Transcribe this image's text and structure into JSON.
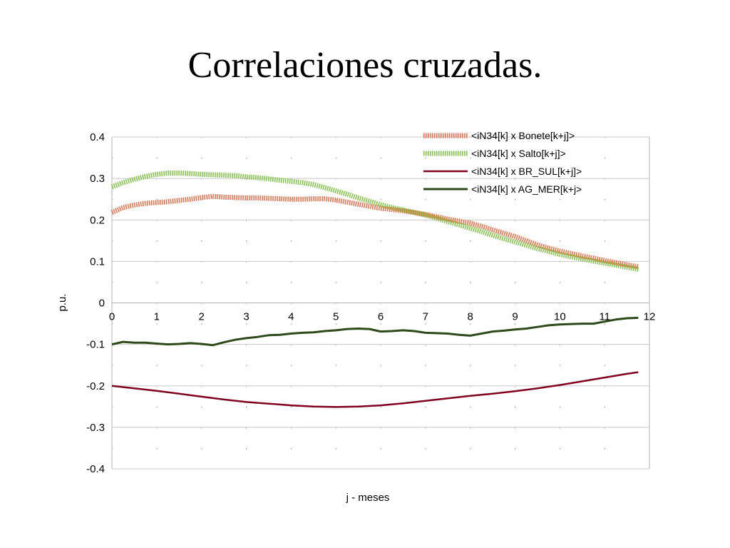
{
  "slide": {
    "title": "Correlaciones cruzadas."
  },
  "colors": {
    "bonete": "#f06a45",
    "salto": "#7dc242",
    "br_sul": "#800020",
    "ag_mer": "#2f4a1a",
    "grid_major": "#c8c8c8",
    "grid_minor": "#b4b4b4"
  },
  "chart_data": {
    "type": "line",
    "title": "",
    "xlabel": "j - meses",
    "ylabel": "p.u.",
    "xlim": [
      0,
      12
    ],
    "ylim": [
      -0.4,
      0.4
    ],
    "x_ticks": [
      "0",
      "1",
      "2",
      "3",
      "4",
      "5",
      "6",
      "7",
      "8",
      "9",
      "10",
      "11",
      "12"
    ],
    "y_ticks": [
      "0.4",
      "0.3",
      "0.2",
      "0.1",
      "0",
      "-0.1",
      "-0.2",
      "-0.3",
      "-0.4"
    ],
    "grid": true,
    "legend": "top-right",
    "series": [
      {
        "name": "<iN34[k] x Bonete[k+j]>",
        "style": "dotted",
        "x": [
          0,
          0.25,
          0.5,
          0.75,
          1,
          1.25,
          1.5,
          1.75,
          2,
          2.25,
          2.5,
          2.75,
          3,
          3.25,
          3.5,
          3.75,
          4,
          4.25,
          4.5,
          4.75,
          5,
          5.25,
          5.5,
          5.75,
          6,
          6.25,
          6.5,
          6.75,
          7,
          7.25,
          7.5,
          7.75,
          8,
          8.25,
          8.5,
          8.75,
          9,
          9.25,
          9.5,
          9.75,
          10,
          10.25,
          10.5,
          10.75,
          11,
          11.25,
          11.5,
          11.75
        ],
        "y": [
          0.218,
          0.23,
          0.236,
          0.24,
          0.242,
          0.244,
          0.247,
          0.25,
          0.254,
          0.257,
          0.255,
          0.254,
          0.253,
          0.253,
          0.252,
          0.251,
          0.25,
          0.25,
          0.251,
          0.251,
          0.248,
          0.243,
          0.238,
          0.233,
          0.228,
          0.225,
          0.222,
          0.218,
          0.213,
          0.208,
          0.202,
          0.197,
          0.192,
          0.185,
          0.176,
          0.168,
          0.16,
          0.15,
          0.14,
          0.132,
          0.125,
          0.119,
          0.113,
          0.108,
          0.102,
          0.097,
          0.092,
          0.087
        ]
      },
      {
        "name": "<iN34[k] x Salto[k+j]>",
        "style": "dotted",
        "x": [
          0,
          0.25,
          0.5,
          0.75,
          1,
          1.25,
          1.5,
          1.75,
          2,
          2.25,
          2.5,
          2.75,
          3,
          3.25,
          3.5,
          3.75,
          4,
          4.25,
          4.5,
          4.75,
          5,
          5.25,
          5.5,
          5.75,
          6,
          6.25,
          6.5,
          6.75,
          7,
          7.25,
          7.5,
          7.75,
          8,
          8.25,
          8.5,
          8.75,
          9,
          9.25,
          9.5,
          9.75,
          10,
          10.25,
          10.5,
          10.75,
          11,
          11.25,
          11.5,
          11.75
        ],
        "y": [
          0.28,
          0.29,
          0.298,
          0.305,
          0.31,
          0.313,
          0.313,
          0.312,
          0.31,
          0.309,
          0.308,
          0.307,
          0.304,
          0.302,
          0.299,
          0.296,
          0.293,
          0.29,
          0.285,
          0.278,
          0.27,
          0.262,
          0.253,
          0.245,
          0.237,
          0.23,
          0.224,
          0.218,
          0.212,
          0.204,
          0.196,
          0.188,
          0.18,
          0.172,
          0.163,
          0.155,
          0.147,
          0.139,
          0.131,
          0.124,
          0.117,
          0.111,
          0.106,
          0.101,
          0.096,
          0.091,
          0.086,
          0.081
        ]
      },
      {
        "name": "<iN34[k] x BR_SUL[k+j]>",
        "style": "solid",
        "x": [
          0,
          0.5,
          1,
          1.5,
          2,
          2.5,
          3,
          3.5,
          4,
          4.5,
          5,
          5.5,
          6,
          6.5,
          7,
          7.5,
          8,
          8.5,
          9,
          9.5,
          10,
          10.5,
          11,
          11.5,
          11.75
        ],
        "y": [
          -0.2,
          -0.206,
          -0.212,
          -0.219,
          -0.226,
          -0.233,
          -0.239,
          -0.243,
          -0.247,
          -0.25,
          -0.251,
          -0.25,
          -0.247,
          -0.242,
          -0.236,
          -0.23,
          -0.224,
          -0.219,
          -0.213,
          -0.206,
          -0.198,
          -0.189,
          -0.18,
          -0.171,
          -0.167
        ]
      },
      {
        "name": "<iN34[k] x AG_MER[k+j>",
        "style": "solid",
        "x": [
          0,
          0.25,
          0.5,
          0.75,
          1,
          1.25,
          1.5,
          1.75,
          2,
          2.25,
          2.5,
          2.75,
          3,
          3.25,
          3.5,
          3.75,
          4,
          4.25,
          4.5,
          4.75,
          5,
          5.25,
          5.5,
          5.75,
          6,
          6.25,
          6.5,
          6.75,
          7,
          7.25,
          7.5,
          7.75,
          8,
          8.25,
          8.5,
          8.75,
          9,
          9.25,
          9.5,
          9.75,
          10,
          10.25,
          10.5,
          10.75,
          11,
          11.25,
          11.5,
          11.75
        ],
        "y": [
          -0.1,
          -0.094,
          -0.096,
          -0.096,
          -0.098,
          -0.1,
          -0.099,
          -0.097,
          -0.099,
          -0.102,
          -0.095,
          -0.089,
          -0.085,
          -0.082,
          -0.078,
          -0.077,
          -0.074,
          -0.072,
          -0.071,
          -0.068,
          -0.066,
          -0.063,
          -0.062,
          -0.063,
          -0.069,
          -0.068,
          -0.066,
          -0.068,
          -0.072,
          -0.073,
          -0.074,
          -0.077,
          -0.079,
          -0.074,
          -0.069,
          -0.067,
          -0.064,
          -0.062,
          -0.058,
          -0.054,
          -0.052,
          -0.051,
          -0.05,
          -0.05,
          -0.045,
          -0.04,
          -0.037,
          -0.036
        ]
      }
    ]
  }
}
